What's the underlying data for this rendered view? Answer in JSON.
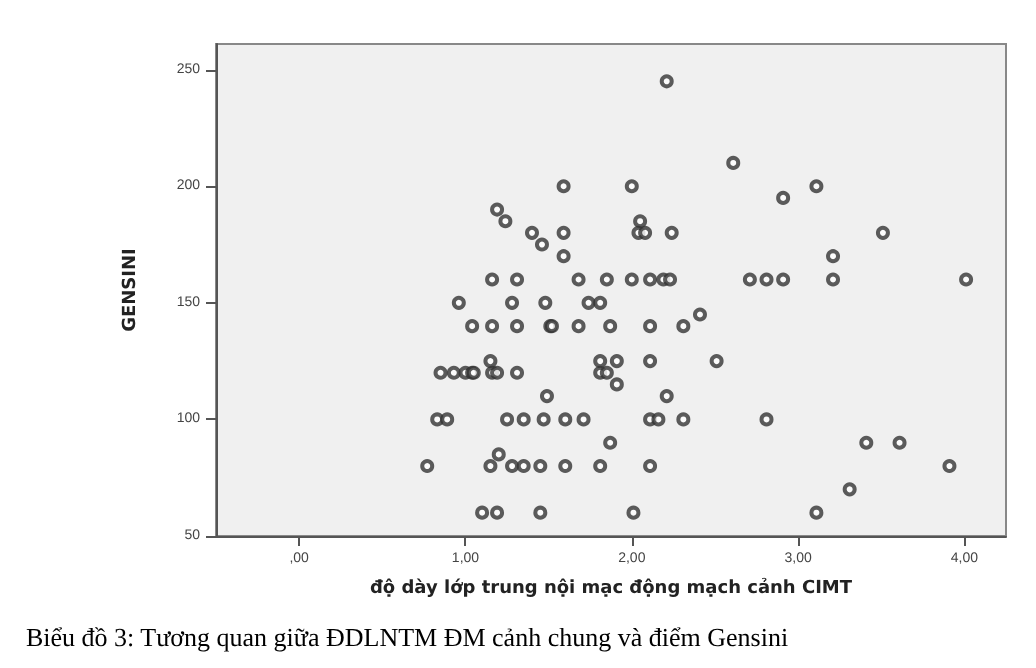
{
  "chart_data": {
    "type": "scatter",
    "xlabel": "độ dày lớp trung nội mạc động mạch cảnh CIMT",
    "ylabel": "GENSINI",
    "annotations": [
      "Biểu đồ 3: Tương quan giữa ĐDLNTM ĐM cảnh chung và điểm Gensini"
    ],
    "x": [
      1.59,
      1.19,
      1.24,
      1.4,
      1.46,
      1.59,
      1.59,
      1.16,
      1.31,
      1.68,
      1.85,
      2.0,
      2.11,
      2.19,
      2.23,
      2.71,
      2.81,
      2.91,
      3.21,
      4.01,
      2.21,
      2.61,
      2.0,
      2.91,
      3.11,
      2.05,
      2.04,
      2.08,
      2.24,
      3.51,
      3.21,
      0.96,
      1.28,
      1.48,
      1.74,
      1.81,
      2.41,
      1.04,
      1.16,
      1.31,
      1.51,
      1.52,
      1.68,
      1.87,
      2.11,
      2.31,
      1.15,
      1.81,
      1.91,
      2.11,
      2.51,
      0.85,
      0.93,
      1.0,
      1.04,
      1.05,
      1.16,
      1.19,
      1.31,
      1.81,
      1.85,
      1.91,
      2.21,
      1.49,
      0.83,
      0.89,
      1.25,
      1.35,
      1.47,
      1.6,
      1.71,
      2.11,
      2.16,
      2.31,
      2.81,
      1.87,
      3.41,
      3.61,
      1.2,
      0.77,
      1.15,
      1.28,
      1.35,
      1.45,
      1.6,
      1.81,
      2.11,
      3.91,
      3.31,
      1.1,
      1.19,
      1.45,
      2.01,
      3.11
    ],
    "values": [
      200,
      190,
      185,
      180,
      175,
      180,
      170,
      160,
      160,
      160,
      160,
      160,
      160,
      160,
      160,
      160,
      160,
      160,
      160,
      160,
      245,
      210,
      200,
      195,
      200,
      185,
      180,
      180,
      180,
      180,
      170,
      150,
      150,
      150,
      150,
      150,
      145,
      140,
      140,
      140,
      140,
      140,
      140,
      140,
      140,
      140,
      125,
      125,
      125,
      125,
      125,
      120,
      120,
      120,
      120,
      120,
      120,
      120,
      120,
      120,
      120,
      115,
      110,
      110,
      100,
      100,
      100,
      100,
      100,
      100,
      100,
      100,
      100,
      100,
      100,
      90,
      90,
      90,
      85,
      80,
      80,
      80,
      80,
      80,
      80,
      80,
      80,
      80,
      70,
      60,
      60,
      60,
      60,
      60
    ],
    "color": "#333333",
    "marker": "circle",
    "grid": false,
    "xlim": [
      -0.5,
      4.25
    ],
    "xticks": [
      {
        "value": 0,
        "label": ",00"
      },
      {
        "value": 1,
        "label": "1,00"
      },
      {
        "value": 2,
        "label": "2,00"
      },
      {
        "value": 3,
        "label": "3,00"
      },
      {
        "value": 4,
        "label": "4,00"
      }
    ],
    "ylim": [
      50,
      261
    ],
    "yticks": [
      50,
      100,
      150,
      200,
      250
    ]
  }
}
